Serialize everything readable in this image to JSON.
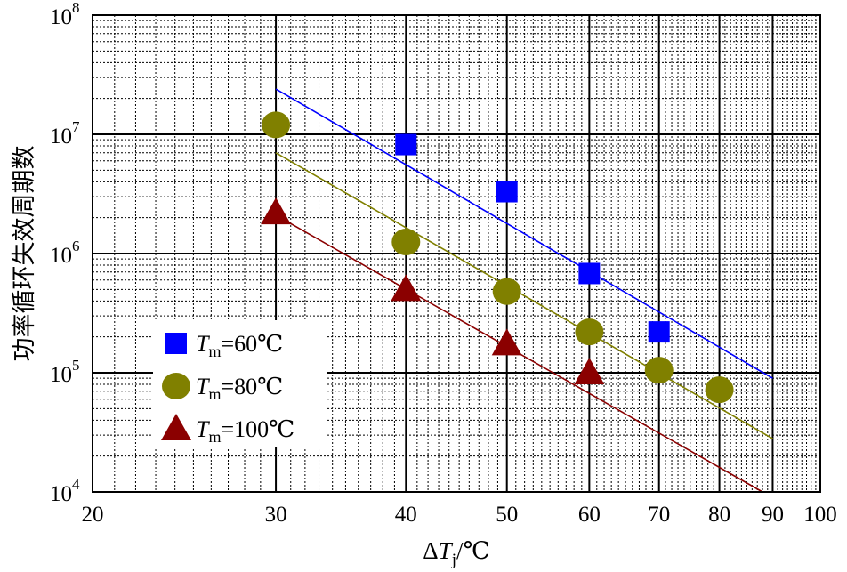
{
  "chart_data": {
    "type": "scatter",
    "title": "",
    "xlabel": {
      "pre": "Δ",
      "var": "T",
      "sub": "j",
      "post": "/℃"
    },
    "ylabel": "功率循环失效周期数",
    "x_scale": "log",
    "y_scale": "log",
    "xlim": [
      20,
      100
    ],
    "ylim": [
      10000,
      100000000
    ],
    "grid": true,
    "legend_position": "bottom-left",
    "x_ticks": [
      {
        "value": 20,
        "label": "20"
      },
      {
        "value": 30,
        "label": "30"
      },
      {
        "value": 40,
        "label": "40"
      },
      {
        "value": 50,
        "label": "50"
      },
      {
        "value": 60,
        "label": "60"
      },
      {
        "value": 70,
        "label": "70"
      },
      {
        "value": 80,
        "label": "80"
      },
      {
        "value": 90,
        "label": "90"
      },
      {
        "value": 100,
        "label": "100"
      }
    ],
    "y_ticks": [
      {
        "value": 10000,
        "base": "10",
        "exp": "4"
      },
      {
        "value": 100000,
        "base": "10",
        "exp": "5"
      },
      {
        "value": 1000000,
        "base": "10",
        "exp": "6"
      },
      {
        "value": 10000000,
        "base": "10",
        "exp": "7"
      },
      {
        "value": 100000000,
        "base": "10",
        "exp": "8"
      }
    ],
    "series": [
      {
        "name": {
          "var": "T",
          "sub": "m",
          "rest": "=60℃"
        },
        "marker": "square",
        "color": "#0000ff",
        "line_color": "#0000ff",
        "x": [
          40,
          50,
          60,
          70
        ],
        "y": [
          8200000,
          3300000,
          680000,
          220000
        ],
        "fit": [
          [
            30,
            24000000
          ],
          [
            90,
            90000
          ]
        ]
      },
      {
        "name": {
          "var": "T",
          "sub": "m",
          "rest": "=80℃"
        },
        "marker": "circle",
        "color": "#808000",
        "line_color": "#808000",
        "x": [
          30,
          40,
          50,
          60,
          70,
          80
        ],
        "y": [
          12000000,
          1250000,
          480000,
          220000,
          105000,
          72000
        ],
        "fit": [
          [
            30,
            7000000
          ],
          [
            90,
            28000
          ]
        ]
      },
      {
        "name": {
          "var": "T",
          "sub": "m",
          "rest": "=100℃"
        },
        "marker": "triangle",
        "color": "#8b0000",
        "line_color": "#8b0000",
        "x": [
          30,
          40,
          50,
          60
        ],
        "y": [
          2200000,
          500000,
          175000,
          100000
        ],
        "fit": [
          [
            30,
            2100000
          ],
          [
            88,
            10000
          ]
        ]
      }
    ]
  }
}
